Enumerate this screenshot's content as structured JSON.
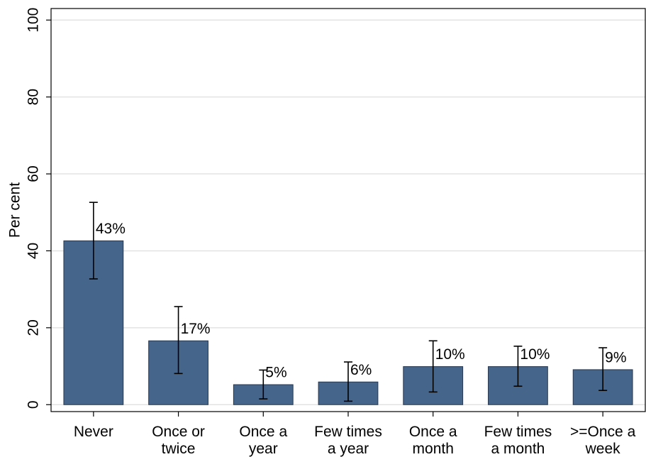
{
  "chart_data": {
    "type": "bar",
    "y_label": "Per cent",
    "categories": [
      [
        "Never"
      ],
      [
        "Once or",
        "twice"
      ],
      [
        "Once a",
        "year"
      ],
      [
        "Few times",
        "a year"
      ],
      [
        "Once a",
        "month"
      ],
      [
        "Few times",
        "a month"
      ],
      [
        ">=Once a",
        "week"
      ]
    ],
    "values": [
      42.6,
      16.6,
      5.2,
      5.9,
      9.9,
      9.9,
      9.1
    ],
    "value_labels": [
      "43%",
      "17%",
      "5%",
      "6%",
      "10%",
      "10%",
      "9%"
    ],
    "lower": [
      32.7,
      8.1,
      1.5,
      0.9,
      3.3,
      4.8,
      3.7
    ],
    "upper": [
      52.6,
      25.5,
      9.0,
      11.1,
      16.6,
      15.2,
      14.8
    ],
    "color": "#46658b",
    "ylim": [
      -1.8,
      103
    ],
    "yticks": [
      0,
      20,
      40,
      60,
      80,
      100
    ],
    "grid": true
  }
}
